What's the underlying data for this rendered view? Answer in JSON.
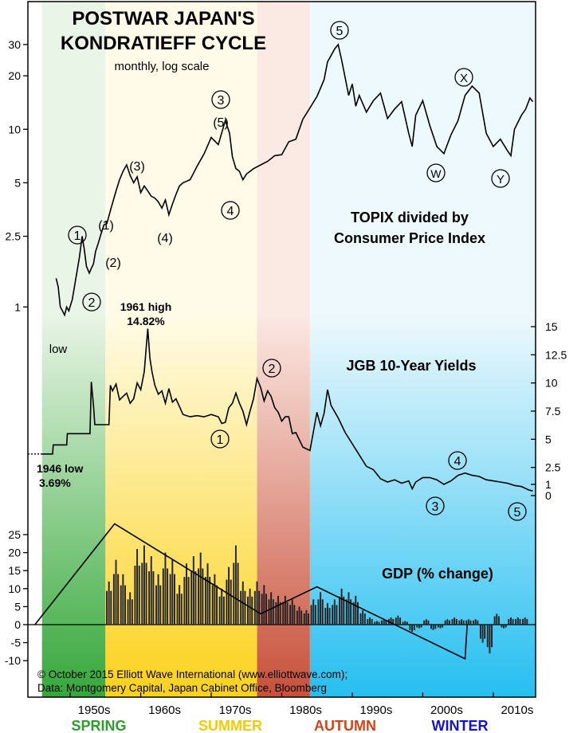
{
  "chart_data": {
    "type": "line",
    "title": "POSTWAR JAPAN'S",
    "title_line2": "KONDRATIEFF CYCLE",
    "subtitle": "monthly, log scale",
    "seasons": [
      {
        "name": "SPRING",
        "start": 1946,
        "end": 1955,
        "color": "#2e9e2e",
        "top_color": "#e9f5e6",
        "bottom_color": "#35a83a"
      },
      {
        "name": "SUMMER",
        "start": 1955,
        "end": 1976.5,
        "color": "#f2cc00",
        "top_color": "#fffbe8",
        "bottom_color": "#fbd21a"
      },
      {
        "name": "AUTUMN",
        "start": 1976.5,
        "end": 1984,
        "color": "#d4441a",
        "top_color": "#fbe9e3",
        "bottom_color": "#c7503a"
      },
      {
        "name": "WINTER",
        "start": 1984,
        "end": 2016,
        "color": "#1313d6",
        "top_color": "#eef9fd",
        "bottom_color": "#26bff0"
      }
    ],
    "x_axis": {
      "ticks": [
        1950,
        1960,
        1970,
        1980,
        1990,
        2000,
        2010
      ],
      "labels": [
        "1950s",
        "1960s",
        "1970s",
        "1980s",
        "1990s",
        "2000s",
        "2010s"
      ],
      "range": [
        1944,
        2016
      ]
    },
    "topix_panel": {
      "label_line1": "TOPIX divided by",
      "label_line2": "Consumer Price Index",
      "scale": "log",
      "y_ticks": [
        1,
        2.5,
        5,
        10,
        20,
        30
      ],
      "y_tick_labels": [
        "1",
        "2.5",
        "5",
        "10",
        "20",
        "30"
      ],
      "ylim": [
        0.63,
        38
      ],
      "x": [
        1948.0,
        1948.3,
        1948.6,
        1948.9,
        1949.2,
        1949.5,
        1949.8,
        1950.3,
        1950.8,
        1951.3,
        1951.7,
        1952.0,
        1952.3,
        1952.7,
        1953.0,
        1953.3,
        1953.6,
        1954.0,
        1954.4,
        1954.8,
        1955.2,
        1955.8,
        1956.5,
        1957.0,
        1957.5,
        1958.0,
        1958.5,
        1959.0,
        1959.5,
        1960.0,
        1960.5,
        1961.0,
        1961.5,
        1962.0,
        1962.5,
        1963.0,
        1963.5,
        1964.0,
        1964.5,
        1965.0,
        1965.5,
        1966.0,
        1967.0,
        1968.0,
        1969.0,
        1970.0,
        1971.0,
        1972.0,
        1972.6,
        1973.0,
        1973.5,
        1974.0,
        1974.5,
        1975.0,
        1976.0,
        1977.0,
        1978.0,
        1979.0,
        1980.0,
        1981.0,
        1982.0,
        1983.0,
        1984.0,
        1985.0,
        1986.0,
        1986.5,
        1987.0,
        1987.5,
        1988.0,
        1988.5,
        1989.0,
        1989.5,
        1990.0,
        1990.5,
        1991.0,
        1992.0,
        1993.0,
        1994.0,
        1995.0,
        1996.0,
        1997.0,
        1998.0,
        1998.5,
        1999.0,
        2000.0,
        2001.0,
        2002.0,
        2003.0,
        2004.0,
        2005.0,
        2006.0,
        2007.0,
        2008.0,
        2009.0,
        2010.0,
        2011.0,
        2012.0,
        2012.5,
        2013.0,
        2014.0,
        2014.6,
        2015.2,
        2015.6
      ],
      "values": [
        1.45,
        1.3,
        1.0,
        0.95,
        0.9,
        1.0,
        0.95,
        1.1,
        1.45,
        1.9,
        2.5,
        2.1,
        1.7,
        1.55,
        1.65,
        1.75,
        2.05,
        2.3,
        2.6,
        2.9,
        2.95,
        3.6,
        4.5,
        5.2,
        5.8,
        6.3,
        5.5,
        5.0,
        5.4,
        4.4,
        4.8,
        4.5,
        4.2,
        4.1,
        3.9,
        3.6,
        4.0,
        3.3,
        3.8,
        4.3,
        4.8,
        5.0,
        5.2,
        6.2,
        7.3,
        9.0,
        8.2,
        11.2,
        9.5,
        7.0,
        6.0,
        5.8,
        5.2,
        5.6,
        6.0,
        6.3,
        6.6,
        7.1,
        7.2,
        8.5,
        8.8,
        11.4,
        13.2,
        15.3,
        19.0,
        24.0,
        26.0,
        28.3,
        30.0,
        24.5,
        19.5,
        15.5,
        18.0,
        13.5,
        15.5,
        12.5,
        14.5,
        16.0,
        11.5,
        13.0,
        14.3,
        9.5,
        8.0,
        12.0,
        14.5,
        10.5,
        8.0,
        7.3,
        9.3,
        11.2,
        15.5,
        17.5,
        16.0,
        9.5,
        8.0,
        8.8,
        7.6,
        7.1,
        10.0,
        12.0,
        13.0,
        15.0,
        14.3
      ],
      "annotations": {
        "low": "low",
        "w1": "1",
        "w2": "2",
        "w1p": "(1)",
        "w2p": "(2)",
        "w3p": "(3)",
        "w4p": "(4)",
        "w3": "3",
        "w5p": "(5)",
        "w4": "4",
        "w5": "5",
        "wx": "X",
        "ww": "W",
        "wy": "Y"
      }
    },
    "jgb_panel": {
      "label": "JGB 10-Year Yields",
      "y_ticks": [
        0,
        1,
        2.5,
        5,
        7.5,
        10,
        12.5,
        15
      ],
      "y_tick_labels": [
        "0",
        "1",
        "2.5",
        "5",
        "7.5",
        "10",
        "12.5",
        "15"
      ],
      "ylim": [
        0,
        15
      ],
      "x": [
        1946.0,
        1947.5,
        1947.6,
        1949.5,
        1949.6,
        1952.8,
        1953.0,
        1953.3,
        1953.5,
        1955.5,
        1955.7,
        1956.0,
        1956.5,
        1957.0,
        1957.5,
        1958.0,
        1958.5,
        1959.0,
        1959.5,
        1960.0,
        1960.5,
        1961.0,
        1961.3,
        1961.6,
        1962.0,
        1962.5,
        1963.0,
        1963.5,
        1964.0,
        1964.5,
        1965.0,
        1966.0,
        1967.0,
        1968.0,
        1969.0,
        1970.0,
        1971.0,
        1971.5,
        1972.0,
        1972.5,
        1973.0,
        1973.5,
        1974.0,
        1974.5,
        1975.0,
        1975.5,
        1976.0,
        1976.5,
        1977.0,
        1977.5,
        1978.0,
        1978.5,
        1979.0,
        1979.5,
        1980.0,
        1980.5,
        1981.0,
        1981.5,
        1982.0,
        1983.0,
        1984.0,
        1985.0,
        1985.5,
        1986.0,
        1986.5,
        1987.0,
        1988.0,
        1989.0,
        1990.0,
        1991.0,
        1992.0,
        1993.0,
        1994.0,
        1995.0,
        1996.0,
        1997.0,
        1998.0,
        1998.5,
        1999.0,
        2000.0,
        2001.0,
        2002.0,
        2003.0,
        2004.0,
        2005.0,
        2006.0,
        2007.0,
        2008.0,
        2009.0,
        2010.0,
        2011.0,
        2012.0,
        2013.0,
        2014.0,
        2015.0,
        2015.6
      ],
      "values": [
        3.69,
        3.69,
        4.5,
        4.5,
        5.5,
        5.5,
        10.1,
        8.0,
        6.3,
        6.3,
        9.8,
        9.3,
        9.9,
        8.5,
        8.8,
        9.1,
        8.2,
        8.6,
        10.0,
        9.4,
        11.0,
        14.82,
        12.2,
        11.0,
        9.8,
        9.0,
        9.3,
        8.2,
        9.5,
        8.3,
        8.6,
        7.2,
        7.0,
        7.1,
        7.0,
        7.2,
        7.0,
        6.4,
        6.5,
        7.8,
        8.2,
        9.1,
        8.2,
        7.5,
        6.3,
        7.5,
        8.6,
        10.4,
        9.6,
        8.4,
        9.3,
        8.8,
        7.8,
        7.4,
        6.6,
        7.0,
        7.0,
        5.5,
        5.6,
        4.3,
        4.0,
        7.4,
        6.2,
        7.3,
        9.4,
        8.0,
        6.9,
        5.6,
        4.6,
        3.6,
        2.6,
        2.3,
        1.5,
        1.2,
        1.4,
        1.1,
        1.3,
        0.6,
        1.2,
        1.6,
        1.6,
        1.4,
        1.0,
        1.3,
        1.8,
        2.0,
        1.8,
        1.7,
        1.4,
        1.3,
        1.2,
        1.1,
        0.9,
        0.8,
        0.5,
        0.4
      ],
      "annotations": {
        "high_label": "1961 high",
        "high_value": "14.82%",
        "low_label": "1946 low",
        "low_value": "3.69%",
        "w1": "1",
        "w2": "2",
        "w3": "3",
        "w4": "4",
        "w5": "5"
      }
    },
    "gdp_panel": {
      "label": "GDP (% change)",
      "y_ticks": [
        -10,
        -5,
        0,
        5,
        10,
        15,
        20,
        25
      ],
      "y_tick_labels": [
        "-10",
        "-5",
        "0",
        "5",
        "10",
        "15",
        "20",
        "25"
      ],
      "ylim": [
        -13,
        28
      ],
      "bars_x": [
        1955.5,
        1956.5,
        1957.5,
        1958.5,
        1959.5,
        1960.5,
        1961.5,
        1962.5,
        1963.5,
        1964.5,
        1965.5,
        1966.5,
        1967.5,
        1968.5,
        1969.5,
        1970.5,
        1971.5,
        1972.5,
        1973.5,
        1974.5,
        1975.5,
        1976.5,
        1977.5,
        1978.5,
        1979.5,
        1980.5,
        1981.5,
        1982.5,
        1983.5,
        1984.5,
        1985.5,
        1986.5,
        1987.5,
        1988.5,
        1989.5,
        1990.5,
        1991.5,
        1992.5,
        1993.5,
        1994.5,
        1995.5,
        1996.5,
        1997.5,
        1998.5,
        1999.5,
        2000.5,
        2001.5,
        2002.5,
        2003.5,
        2004.5,
        2005.5,
        2006.5,
        2007.5,
        2008.5,
        2009.5,
        2010.5,
        2011.5,
        2012.5,
        2013.5,
        2014.5
      ],
      "bars_values": [
        12,
        18,
        14,
        9,
        21,
        22,
        19,
        14,
        20,
        18,
        11,
        17,
        19,
        20,
        17,
        14,
        10,
        16,
        22,
        12,
        10,
        12,
        11,
        9,
        8,
        8,
        7,
        5,
        4,
        7,
        9,
        6,
        7,
        10,
        9,
        8,
        4,
        2,
        1,
        1.5,
        2,
        2.5,
        1,
        -2,
        -1,
        1.5,
        -1.5,
        -1,
        1.5,
        2,
        1.5,
        1.5,
        1.5,
        -5,
        -8,
        3,
        -1,
        2,
        2,
        2
      ],
      "trend_x": [
        1945,
        1956.3,
        1977,
        1985,
        2006,
        2006.3
      ],
      "trend_y": [
        0,
        28,
        3,
        10.5,
        -9.5,
        0
      ]
    },
    "copyright_line1": "© October 2015 Elliott Wave International (www.elliottwave.com);",
    "copyright_line2": "Data: Montgomery Capital, Japan Cabinet Office, Bloomberg"
  }
}
